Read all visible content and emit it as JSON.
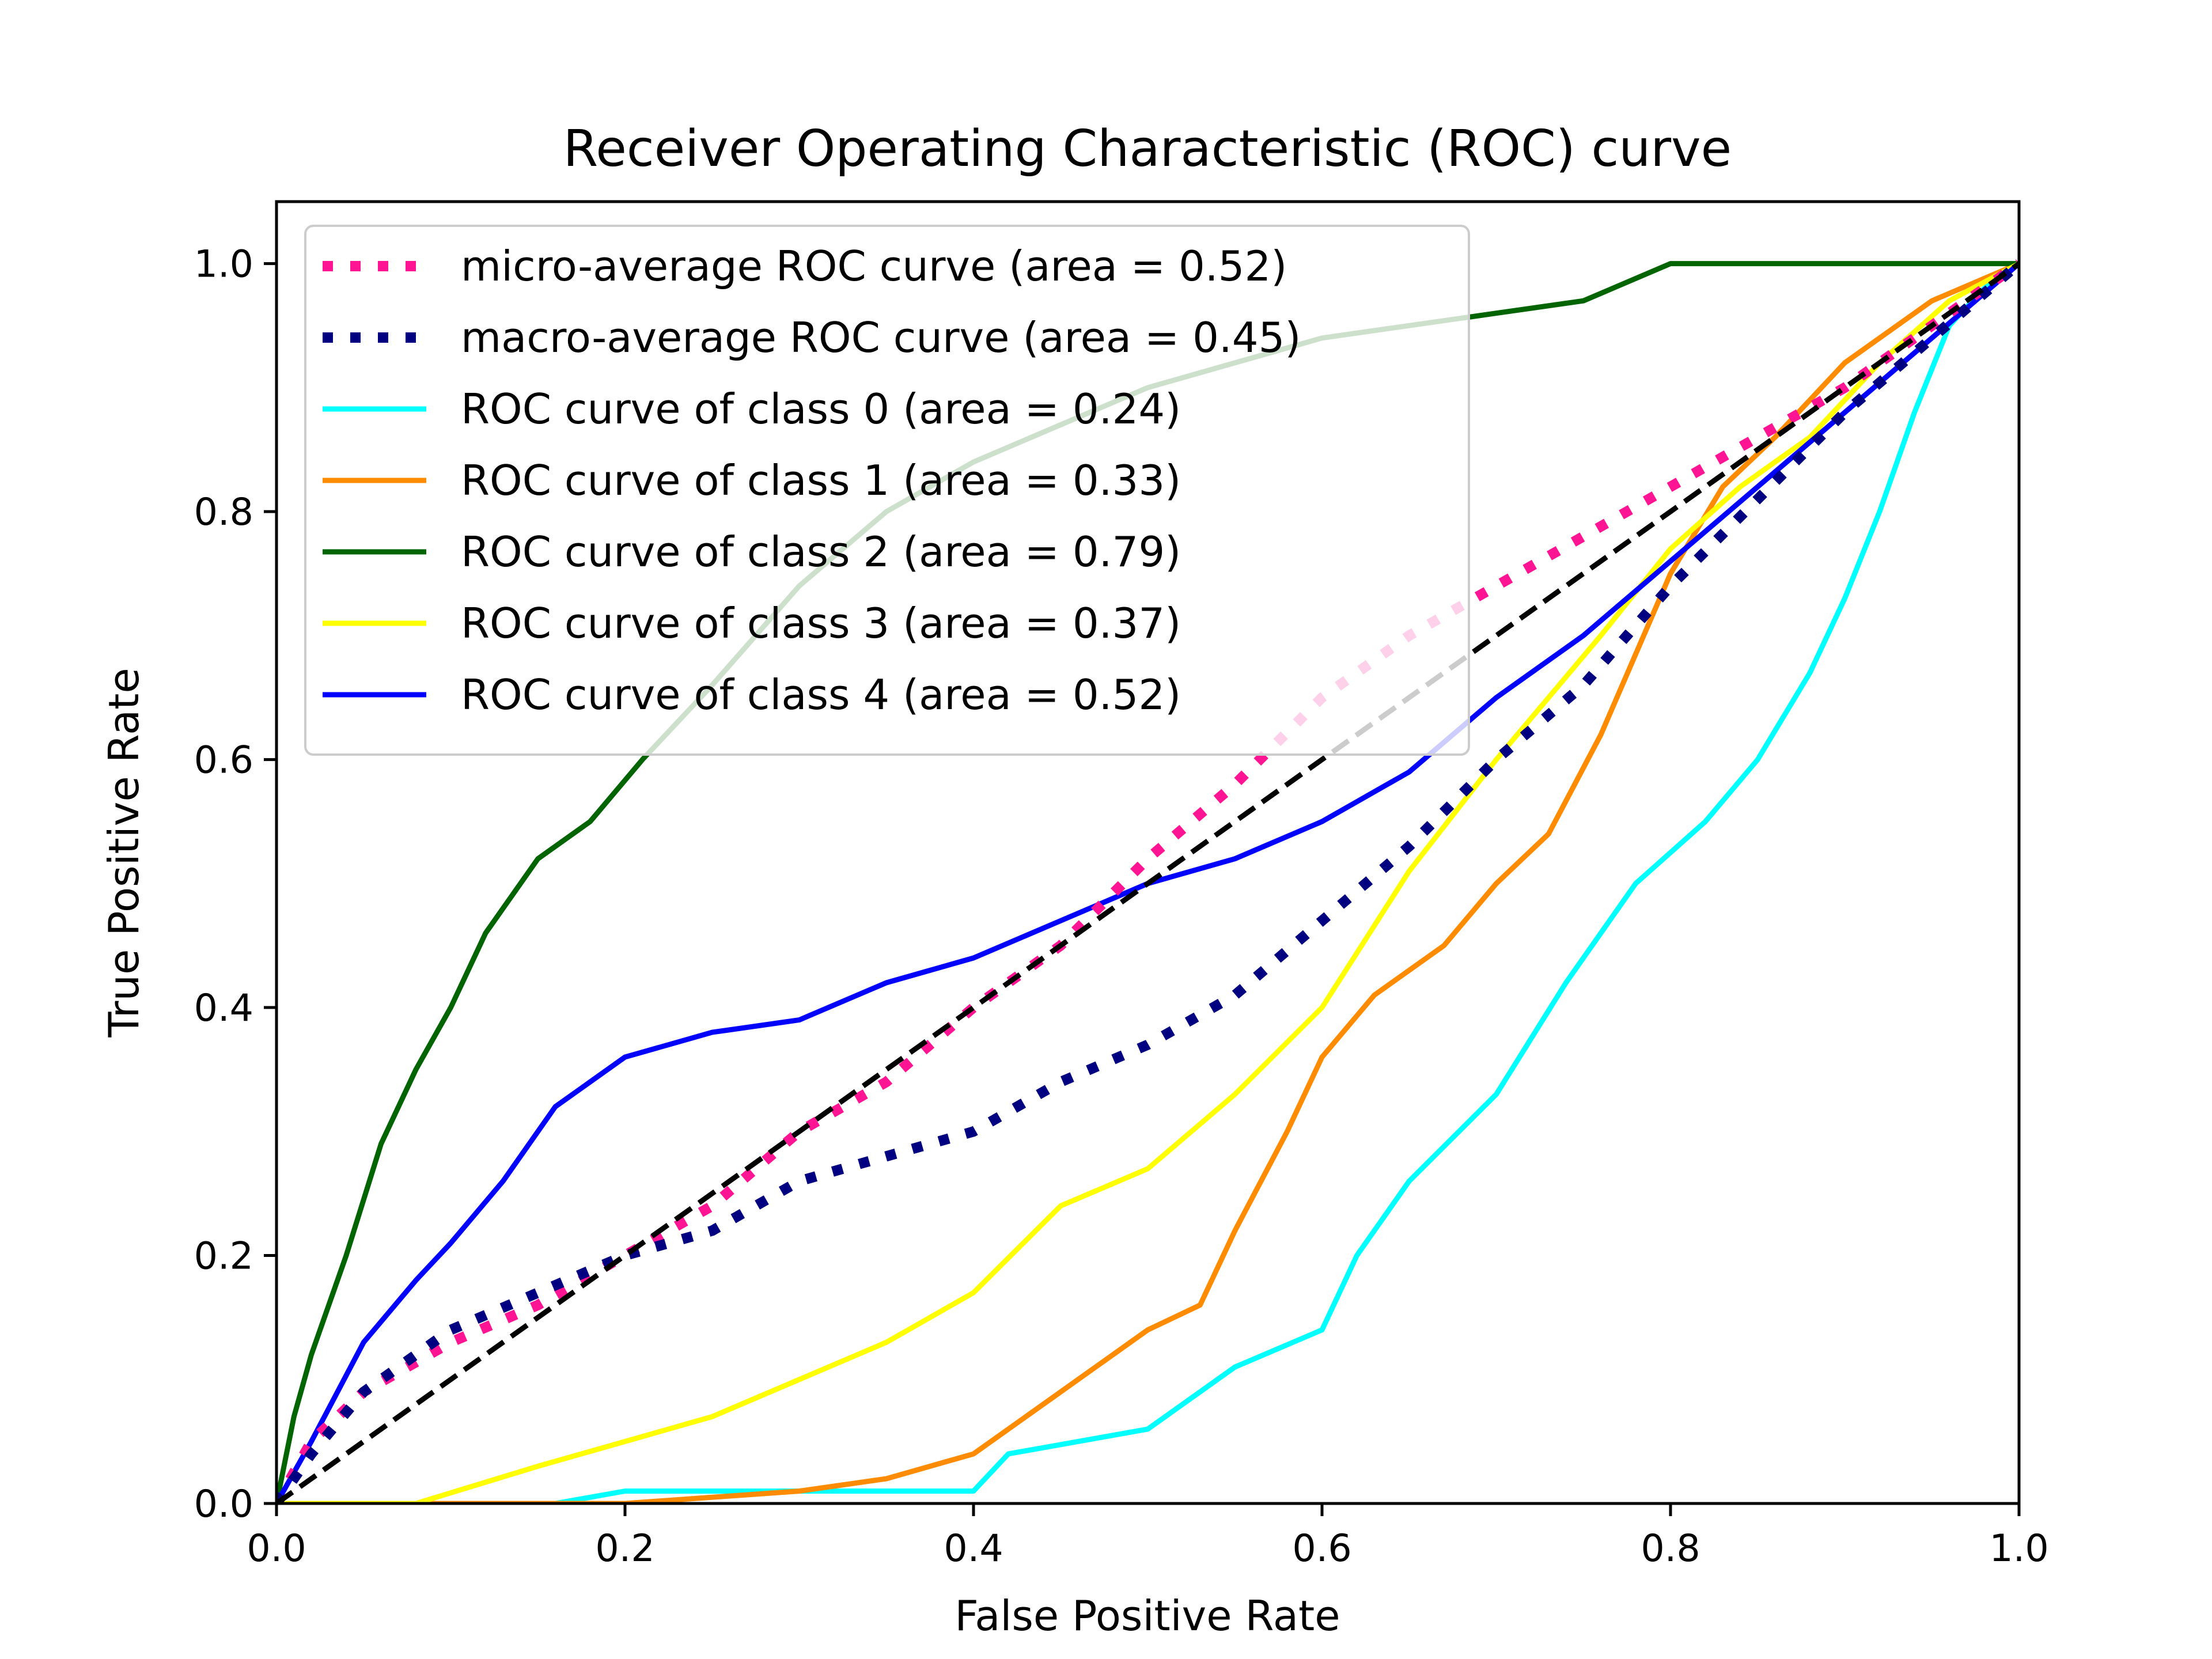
{
  "chart_data": {
    "type": "line",
    "title": "Receiver Operating Characteristic (ROC) curve",
    "xlabel": "False Positive Rate",
    "ylabel": "True Positive Rate",
    "xlim": [
      0.0,
      1.0
    ],
    "ylim": [
      0.0,
      1.05
    ],
    "xticks": [
      "0.0",
      "0.2",
      "0.4",
      "0.6",
      "0.8",
      "1.0"
    ],
    "yticks": [
      "0.0",
      "0.2",
      "0.4",
      "0.6",
      "0.8",
      "1.0"
    ],
    "grid": false,
    "legend_position": "upper-left",
    "series": [
      {
        "name": "micro-average ROC curve (area = 0.52)",
        "color": "#ff1493",
        "style": "dotted",
        "x": [
          0.0,
          0.02,
          0.05,
          0.1,
          0.15,
          0.2,
          0.25,
          0.3,
          0.35,
          0.4,
          0.45,
          0.5,
          0.55,
          0.6,
          0.65,
          0.7,
          0.75,
          0.8,
          0.85,
          0.9,
          0.95,
          1.0
        ],
        "y": [
          0.0,
          0.05,
          0.09,
          0.13,
          0.16,
          0.2,
          0.24,
          0.3,
          0.34,
          0.4,
          0.45,
          0.52,
          0.58,
          0.65,
          0.7,
          0.74,
          0.78,
          0.82,
          0.86,
          0.9,
          0.95,
          1.0
        ]
      },
      {
        "name": "macro-average ROC curve (area = 0.45)",
        "color": "#000080",
        "style": "dotted",
        "x": [
          0.0,
          0.02,
          0.05,
          0.1,
          0.15,
          0.2,
          0.25,
          0.3,
          0.35,
          0.4,
          0.45,
          0.5,
          0.55,
          0.6,
          0.65,
          0.7,
          0.75,
          0.8,
          0.85,
          0.9,
          0.95,
          1.0
        ],
        "y": [
          0.0,
          0.04,
          0.09,
          0.14,
          0.17,
          0.2,
          0.22,
          0.26,
          0.28,
          0.3,
          0.34,
          0.37,
          0.41,
          0.47,
          0.53,
          0.6,
          0.66,
          0.74,
          0.81,
          0.88,
          0.94,
          1.0
        ]
      },
      {
        "name": "ROC curve of class 0 (area = 0.24)",
        "color": "#00ffff",
        "style": "solid",
        "x": [
          0.0,
          0.16,
          0.2,
          0.4,
          0.42,
          0.5,
          0.55,
          0.6,
          0.62,
          0.65,
          0.7,
          0.74,
          0.78,
          0.82,
          0.85,
          0.88,
          0.9,
          0.92,
          0.94,
          0.96,
          0.98,
          1.0
        ],
        "y": [
          0.0,
          0.0,
          0.01,
          0.01,
          0.04,
          0.06,
          0.11,
          0.14,
          0.2,
          0.26,
          0.33,
          0.42,
          0.5,
          0.55,
          0.6,
          0.67,
          0.73,
          0.8,
          0.88,
          0.95,
          0.98,
          1.0
        ]
      },
      {
        "name": "ROC curve of class 1 (area = 0.33)",
        "color": "#ff8c00",
        "style": "solid",
        "x": [
          0.0,
          0.2,
          0.3,
          0.35,
          0.4,
          0.45,
          0.5,
          0.53,
          0.55,
          0.58,
          0.6,
          0.63,
          0.67,
          0.7,
          0.73,
          0.76,
          0.8,
          0.83,
          0.86,
          0.9,
          0.95,
          1.0
        ],
        "y": [
          0.0,
          0.0,
          0.01,
          0.02,
          0.04,
          0.09,
          0.14,
          0.16,
          0.22,
          0.3,
          0.36,
          0.41,
          0.45,
          0.5,
          0.54,
          0.62,
          0.75,
          0.82,
          0.86,
          0.92,
          0.97,
          1.0
        ]
      },
      {
        "name": "ROC curve of class 2 (area = 0.79)",
        "color": "#006400",
        "style": "solid",
        "x": [
          0.0,
          0.01,
          0.02,
          0.04,
          0.06,
          0.08,
          0.1,
          0.12,
          0.15,
          0.18,
          0.21,
          0.25,
          0.3,
          0.35,
          0.4,
          0.5,
          0.6,
          0.7,
          0.75,
          0.8,
          0.9,
          1.0
        ],
        "y": [
          0.0,
          0.07,
          0.12,
          0.2,
          0.29,
          0.35,
          0.4,
          0.46,
          0.52,
          0.55,
          0.6,
          0.66,
          0.74,
          0.8,
          0.84,
          0.9,
          0.94,
          0.96,
          0.97,
          1.0,
          1.0,
          1.0
        ]
      },
      {
        "name": "ROC curve of class 3 (area = 0.37)",
        "color": "#ffff00",
        "style": "solid",
        "x": [
          0.0,
          0.08,
          0.15,
          0.2,
          0.25,
          0.3,
          0.35,
          0.4,
          0.45,
          0.5,
          0.55,
          0.6,
          0.65,
          0.7,
          0.73,
          0.76,
          0.8,
          0.84,
          0.88,
          0.92,
          0.96,
          1.0
        ],
        "y": [
          0.0,
          0.0,
          0.03,
          0.05,
          0.07,
          0.1,
          0.13,
          0.17,
          0.24,
          0.27,
          0.33,
          0.4,
          0.51,
          0.6,
          0.65,
          0.7,
          0.77,
          0.82,
          0.86,
          0.92,
          0.97,
          1.0
        ]
      },
      {
        "name": "ROC curve of class 4 (area = 0.52)",
        "color": "#0000ff",
        "style": "solid",
        "x": [
          0.0,
          0.02,
          0.05,
          0.08,
          0.1,
          0.13,
          0.16,
          0.2,
          0.25,
          0.3,
          0.35,
          0.4,
          0.45,
          0.5,
          0.55,
          0.6,
          0.65,
          0.7,
          0.75,
          0.8,
          0.9,
          1.0
        ],
        "y": [
          0.0,
          0.05,
          0.13,
          0.18,
          0.21,
          0.26,
          0.32,
          0.36,
          0.38,
          0.39,
          0.42,
          0.44,
          0.47,
          0.5,
          0.52,
          0.55,
          0.59,
          0.65,
          0.7,
          0.76,
          0.88,
          1.0
        ]
      },
      {
        "name": "",
        "color": "#000000",
        "style": "dashed",
        "x": [
          0.0,
          1.0
        ],
        "y": [
          0.0,
          1.0
        ]
      }
    ]
  }
}
